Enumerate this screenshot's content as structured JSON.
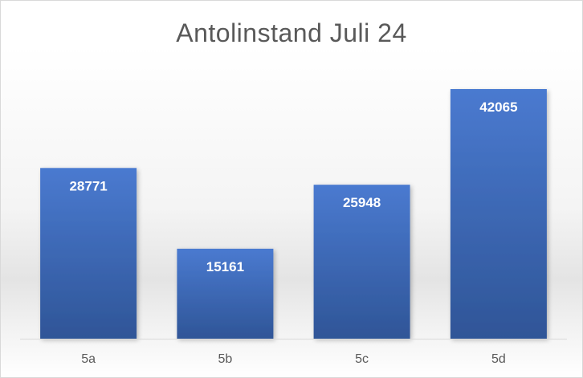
{
  "chart_data": {
    "type": "bar",
    "title": "Antolinstand Juli 24",
    "categories": [
      "5a",
      "5b",
      "5c",
      "5d"
    ],
    "values": [
      28771,
      15161,
      25948,
      42065
    ],
    "data_labels": [
      "28771",
      "15161",
      "25948",
      "42065"
    ],
    "xlabel": "",
    "ylabel": "",
    "ylim": [
      0,
      42065
    ],
    "grid": false,
    "legend": "none",
    "bar_color_top": "#4a7ad0",
    "bar_color_bottom": "#2f5597",
    "title_color": "#595959",
    "tick_color": "#595959",
    "baseline_color": "#d9d9d9"
  }
}
